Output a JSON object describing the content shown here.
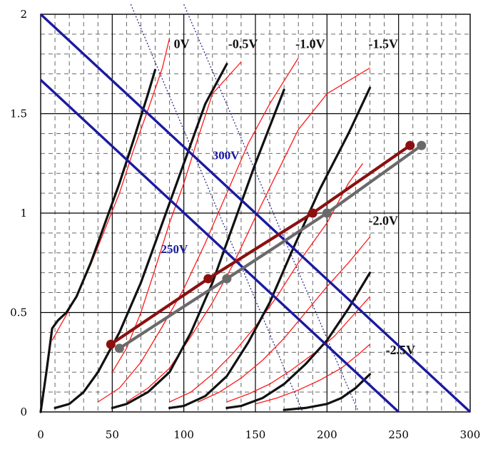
{
  "chart_data": {
    "type": "line",
    "title": "",
    "xlabel": "",
    "ylabel": "",
    "xlim": [
      0,
      300
    ],
    "ylim": [
      0,
      2
    ],
    "x_ticks": [
      "0",
      "50",
      "100",
      "150",
      "200",
      "250",
      "300"
    ],
    "y_ticks": [
      "0",
      "0.5",
      "1",
      "1.5",
      "2"
    ],
    "grid": true,
    "grid_minor": true,
    "colors": {
      "black_curve": "#111111",
      "red_curve": "#ff1a1a",
      "load_line": "#1a1aa0",
      "dotted": "#303090",
      "op_red": "#8b1010",
      "op_gray": "#6a6a6a"
    },
    "grid_curve_labels": [
      {
        "text": "0V",
        "x": 93,
        "y": 1.83
      },
      {
        "text": "-0.5V",
        "x": 131,
        "y": 1.83
      },
      {
        "text": "-1.0V",
        "x": 178,
        "y": 1.83
      },
      {
        "text": "-1.5V",
        "x": 229,
        "y": 1.83
      },
      {
        "text": "-2.0V",
        "x": 229,
        "y": 0.94
      },
      {
        "text": "-2.5V",
        "x": 241,
        "y": 0.29
      }
    ],
    "load_line_labels": [
      {
        "text": "300V",
        "x": 120,
        "y": 1.27
      },
      {
        "text": "250V",
        "x": 84,
        "y": 0.8
      }
    ],
    "black_curves": [
      {
        "grid": "0V",
        "points": [
          [
            0,
            0
          ],
          [
            4,
            0.2
          ],
          [
            8,
            0.42
          ],
          [
            12,
            0.46
          ],
          [
            18,
            0.5
          ],
          [
            25,
            0.58
          ],
          [
            35,
            0.75
          ],
          [
            45,
            0.95
          ],
          [
            55,
            1.15
          ],
          [
            65,
            1.37
          ],
          [
            75,
            1.6
          ],
          [
            80,
            1.72
          ]
        ]
      },
      {
        "grid": "-0.5V",
        "points": [
          [
            10,
            0.02
          ],
          [
            20,
            0.04
          ],
          [
            30,
            0.1
          ],
          [
            40,
            0.2
          ],
          [
            55,
            0.4
          ],
          [
            70,
            0.65
          ],
          [
            85,
            0.95
          ],
          [
            100,
            1.25
          ],
          [
            115,
            1.55
          ],
          [
            130,
            1.75
          ]
        ]
      },
      {
        "grid": "-1.0V",
        "points": [
          [
            50,
            0.02
          ],
          [
            60,
            0.04
          ],
          [
            75,
            0.1
          ],
          [
            90,
            0.2
          ],
          [
            105,
            0.4
          ],
          [
            120,
            0.65
          ],
          [
            135,
            0.95
          ],
          [
            150,
            1.25
          ],
          [
            170,
            1.62
          ]
        ]
      },
      {
        "grid": "-1.5V",
        "points": [
          [
            90,
            0.02
          ],
          [
            100,
            0.03
          ],
          [
            115,
            0.08
          ],
          [
            130,
            0.18
          ],
          [
            145,
            0.35
          ],
          [
            160,
            0.55
          ],
          [
            175,
            0.8
          ],
          [
            195,
            1.12
          ],
          [
            215,
            1.4
          ],
          [
            230,
            1.63
          ]
        ]
      },
      {
        "grid": "-2.0V",
        "points": [
          [
            130,
            0.02
          ],
          [
            140,
            0.03
          ],
          [
            155,
            0.07
          ],
          [
            170,
            0.14
          ],
          [
            185,
            0.24
          ],
          [
            200,
            0.36
          ],
          [
            215,
            0.52
          ],
          [
            230,
            0.7
          ]
        ]
      },
      {
        "grid": "-2.5V",
        "points": [
          [
            170,
            0.01
          ],
          [
            185,
            0.02
          ],
          [
            200,
            0.04
          ],
          [
            210,
            0.07
          ],
          [
            220,
            0.12
          ],
          [
            230,
            0.19
          ]
        ]
      }
    ],
    "red_curves": [
      [
        [
          8,
          0.36
        ],
        [
          15,
          0.45
        ],
        [
          25,
          0.58
        ],
        [
          35,
          0.74
        ],
        [
          45,
          0.92
        ],
        [
          55,
          1.1
        ],
        [
          65,
          1.32
        ],
        [
          75,
          1.52
        ],
        [
          85,
          1.73
        ],
        [
          90,
          1.88
        ]
      ],
      [
        [
          50,
          0.2
        ],
        [
          60,
          0.32
        ],
        [
          70,
          0.5
        ],
        [
          80,
          0.72
        ],
        [
          90,
          0.95
        ],
        [
          100,
          1.15
        ],
        [
          110,
          1.38
        ],
        [
          120,
          1.6
        ],
        [
          140,
          1.76
        ]
      ],
      [
        [
          40,
          0.05
        ],
        [
          55,
          0.12
        ],
        [
          70,
          0.25
        ],
        [
          85,
          0.43
        ],
        [
          100,
          0.62
        ],
        [
          115,
          0.85
        ],
        [
          130,
          1.1
        ],
        [
          145,
          1.35
        ],
        [
          160,
          1.55
        ],
        [
          180,
          1.78
        ]
      ],
      [
        [
          60,
          0.05
        ],
        [
          75,
          0.12
        ],
        [
          90,
          0.22
        ],
        [
          105,
          0.38
        ],
        [
          120,
          0.55
        ],
        [
          135,
          0.75
        ],
        [
          150,
          0.98
        ],
        [
          165,
          1.2
        ],
        [
          180,
          1.42
        ],
        [
          200,
          1.6
        ],
        [
          230,
          1.73
        ]
      ],
      [
        [
          90,
          0.05
        ],
        [
          105,
          0.1
        ],
        [
          120,
          0.19
        ],
        [
          135,
          0.3
        ],
        [
          150,
          0.43
        ],
        [
          165,
          0.58
        ],
        [
          180,
          0.75
        ],
        [
          200,
          0.95
        ],
        [
          215,
          1.15
        ],
        [
          225,
          1.25
        ]
      ],
      [
        [
          110,
          0.05
        ],
        [
          125,
          0.1
        ],
        [
          140,
          0.17
        ],
        [
          155,
          0.26
        ],
        [
          170,
          0.37
        ],
        [
          185,
          0.5
        ],
        [
          200,
          0.63
        ],
        [
          215,
          0.75
        ],
        [
          230,
          0.88
        ]
      ],
      [
        [
          130,
          0.05
        ],
        [
          145,
          0.09
        ],
        [
          160,
          0.14
        ],
        [
          175,
          0.21
        ],
        [
          190,
          0.29
        ],
        [
          205,
          0.38
        ],
        [
          220,
          0.5
        ],
        [
          230,
          0.58
        ]
      ],
      [
        [
          150,
          0.04
        ],
        [
          165,
          0.07
        ],
        [
          180,
          0.11
        ],
        [
          195,
          0.16
        ],
        [
          210,
          0.22
        ],
        [
          222,
          0.29
        ],
        [
          230,
          0.34
        ]
      ]
    ],
    "load_lines": [
      {
        "name": "300V",
        "points": [
          [
            0,
            2.0
          ],
          [
            300,
            0
          ]
        ]
      },
      {
        "name": "250V",
        "points": [
          [
            0,
            1.67
          ],
          [
            250,
            0
          ]
        ]
      }
    ],
    "dotted_lines": [
      [
        [
          63,
          2.05
        ],
        [
          183,
          0
        ]
      ],
      [
        [
          100,
          2.05
        ],
        [
          222,
          0
        ]
      ]
    ],
    "operating_lines": [
      {
        "color": "op_red",
        "points": [
          [
            49,
            0.34
          ],
          [
            117,
            0.67
          ],
          [
            190,
            1.0
          ],
          [
            258,
            1.34
          ]
        ]
      },
      {
        "color": "op_gray",
        "points": [
          [
            55,
            0.32
          ],
          [
            130,
            0.67
          ],
          [
            200,
            1.0
          ],
          [
            266,
            1.34
          ]
        ]
      }
    ]
  }
}
